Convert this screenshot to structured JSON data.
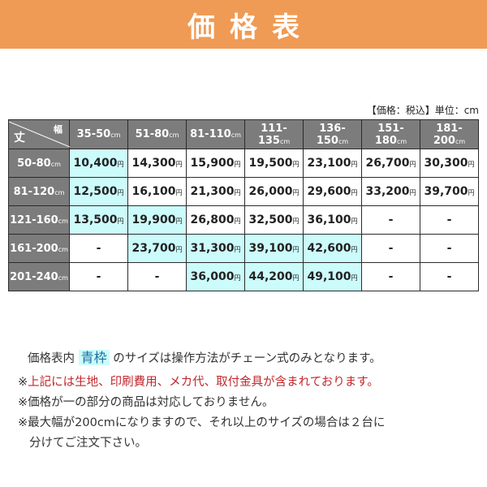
{
  "title": "価格表",
  "unit_note": "【価格：税込】単位：cm",
  "corner": {
    "row_axis": "丈",
    "col_axis": "幅"
  },
  "unit_suffix": "cm",
  "currency": "円",
  "columns": [
    "35-50",
    "51-80",
    "81-110",
    "111-135",
    "136-150",
    "151-180",
    "181-200"
  ],
  "rows": [
    {
      "label": "50-80",
      "cells": [
        "10,400",
        "14,300",
        "15,900",
        "19,500",
        "23,100",
        "26,700",
        "30,300"
      ],
      "blue": [
        0
      ]
    },
    {
      "label": "81-120",
      "cells": [
        "12,500",
        "16,100",
        "21,300",
        "26,000",
        "29,600",
        "33,200",
        "39,700"
      ],
      "blue": [
        0
      ]
    },
    {
      "label": "121-160",
      "cells": [
        "13,500",
        "19,900",
        "26,800",
        "32,500",
        "36,100",
        "-",
        "-"
      ],
      "blue": [
        0,
        1
      ]
    },
    {
      "label": "161-200",
      "cells": [
        "-",
        "23,700",
        "31,300",
        "39,100",
        "42,600",
        "-",
        "-"
      ],
      "blue": [
        1,
        2,
        3,
        4
      ]
    },
    {
      "label": "201-240",
      "cells": [
        "-",
        "-",
        "36,000",
        "44,200",
        "49,100",
        "-",
        "-"
      ],
      "blue": [
        2,
        3,
        4
      ]
    }
  ],
  "notes": {
    "line1_pre": "価格表内",
    "line1_highlight": "青枠",
    "line1_post": "のサイズは操作方法がチェーン式のみとなります。",
    "line2_mark": "※",
    "line2": "上記には生地、印刷費用、メカ代、取付金具が含まれております。",
    "line3": "※価格が一の部分の商品は対応しておりません。",
    "line4": "※最大幅が200cmになりますので、それ以上のサイズの場合は２台に",
    "line5": "分けてご注文下さい。"
  },
  "colors": {
    "banner": "#ef9b55",
    "header_cell": "#7c7c7c",
    "chain_only_cell": "#ccfbfb",
    "warning_text": "#c2262b"
  }
}
